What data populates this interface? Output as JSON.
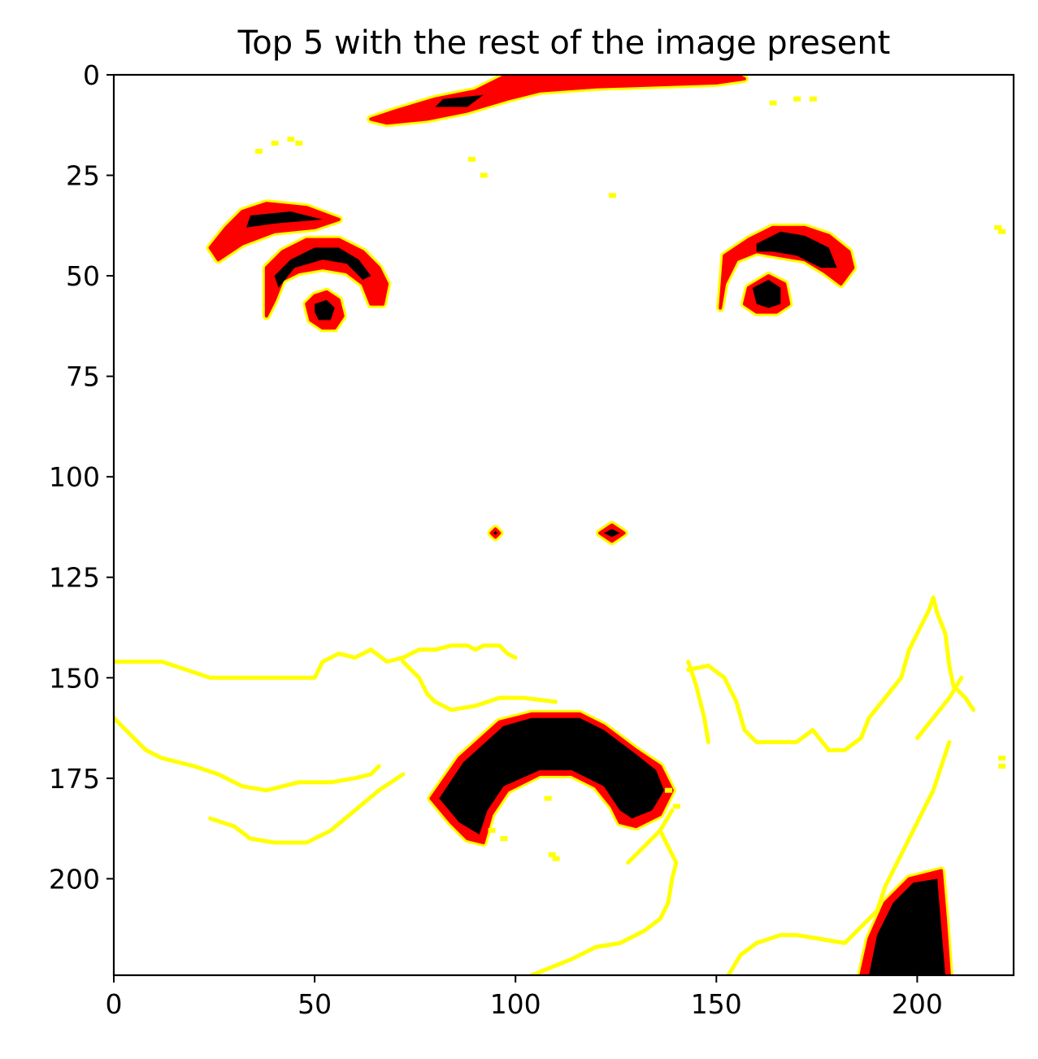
{
  "chart_data": {
    "type": "heatmap",
    "title": "Top 5 with the rest of the image present",
    "xlabel": "",
    "ylabel": "",
    "xlim": [
      0,
      224
    ],
    "ylim": [
      224,
      0
    ],
    "x_ticks": [
      0,
      50,
      100,
      150,
      200
    ],
    "y_ticks": [
      0,
      25,
      50,
      75,
      100,
      125,
      150,
      175,
      200
    ],
    "grid": false,
    "legend": "none",
    "colormap": "hot",
    "colors": {
      "background": "#ffffff",
      "high": "#000000",
      "mid": "#ff0000",
      "low": "#ffff00"
    },
    "regions": [
      {
        "name": "forehead-streak",
        "fill": [
          [
            98,
            0
          ],
          [
            155,
            0
          ],
          [
            157,
            1
          ],
          [
            150,
            2
          ],
          [
            120,
            3
          ],
          [
            106,
            4
          ],
          [
            98,
            6
          ],
          [
            88,
            9
          ],
          [
            78,
            11
          ],
          [
            68,
            12
          ],
          [
            64,
            11
          ],
          [
            70,
            9
          ],
          [
            80,
            6
          ],
          [
            90,
            4
          ]
        ],
        "core": [
          [
            82,
            6
          ],
          [
            92,
            5
          ],
          [
            88,
            8
          ],
          [
            80,
            8
          ]
        ]
      },
      {
        "name": "left-eyebrow",
        "fill": [
          [
            24,
            43
          ],
          [
            28,
            38
          ],
          [
            32,
            34
          ],
          [
            38,
            32
          ],
          [
            48,
            33
          ],
          [
            56,
            36
          ],
          [
            50,
            38
          ],
          [
            40,
            39
          ],
          [
            32,
            42
          ],
          [
            26,
            46
          ]
        ],
        "core": [
          [
            34,
            35
          ],
          [
            44,
            34
          ],
          [
            52,
            36
          ],
          [
            40,
            37
          ],
          [
            33,
            38
          ]
        ]
      },
      {
        "name": "left-eye",
        "fill": [
          [
            38,
            48
          ],
          [
            42,
            44
          ],
          [
            48,
            41
          ],
          [
            56,
            41
          ],
          [
            62,
            44
          ],
          [
            66,
            48
          ],
          [
            68,
            52
          ],
          [
            67,
            57
          ],
          [
            64,
            57
          ],
          [
            62,
            52
          ],
          [
            58,
            49
          ],
          [
            52,
            48
          ],
          [
            46,
            49
          ],
          [
            42,
            51
          ],
          [
            40,
            56
          ],
          [
            38,
            60
          ]
        ],
        "core": [
          [
            40,
            50
          ],
          [
            44,
            46
          ],
          [
            50,
            43
          ],
          [
            56,
            43
          ],
          [
            61,
            46
          ],
          [
            64,
            50
          ],
          [
            62,
            51
          ],
          [
            58,
            47
          ],
          [
            52,
            46
          ],
          [
            45,
            48
          ],
          [
            41,
            53
          ]
        ]
      },
      {
        "name": "left-eye-pupil",
        "fill": [
          [
            48,
            57
          ],
          [
            50,
            55
          ],
          [
            53,
            54
          ],
          [
            56,
            56
          ],
          [
            57,
            60
          ],
          [
            55,
            63
          ],
          [
            52,
            63
          ],
          [
            49,
            61
          ]
        ],
        "core": [
          [
            50,
            57
          ],
          [
            53,
            56
          ],
          [
            55,
            58
          ],
          [
            54,
            61
          ],
          [
            51,
            61
          ],
          [
            50,
            59
          ]
        ]
      },
      {
        "name": "right-eye",
        "fill": [
          [
            152,
            45
          ],
          [
            158,
            41
          ],
          [
            164,
            38
          ],
          [
            172,
            38
          ],
          [
            178,
            40
          ],
          [
            183,
            44
          ],
          [
            184,
            48
          ],
          [
            181,
            52
          ],
          [
            177,
            49
          ],
          [
            172,
            46
          ],
          [
            166,
            45
          ],
          [
            160,
            44
          ],
          [
            155,
            46
          ],
          [
            152,
            52
          ],
          [
            151,
            58
          ]
        ],
        "core": [
          [
            160,
            42
          ],
          [
            166,
            39
          ],
          [
            172,
            40
          ],
          [
            178,
            43
          ],
          [
            180,
            48
          ],
          [
            176,
            48
          ],
          [
            170,
            45
          ],
          [
            164,
            44
          ],
          [
            160,
            44
          ]
        ]
      },
      {
        "name": "right-eye-pupil",
        "fill": [
          [
            158,
            53
          ],
          [
            163,
            50
          ],
          [
            167,
            52
          ],
          [
            168,
            57
          ],
          [
            165,
            59
          ],
          [
            160,
            59
          ],
          [
            157,
            57
          ]
        ],
        "core": [
          [
            159,
            53
          ],
          [
            163,
            51
          ],
          [
            166,
            53
          ],
          [
            166,
            57
          ],
          [
            163,
            58
          ],
          [
            160,
            57
          ]
        ]
      },
      {
        "name": "nostril-right",
        "fill": [
          [
            121,
            114
          ],
          [
            124,
            112
          ],
          [
            127,
            114
          ],
          [
            124,
            116
          ]
        ],
        "core": [
          [
            122,
            114
          ],
          [
            124,
            113
          ],
          [
            126,
            114
          ],
          [
            124,
            115
          ]
        ]
      },
      {
        "name": "nostril-left",
        "fill": [
          [
            94,
            114
          ],
          [
            95,
            113
          ],
          [
            96,
            114
          ],
          [
            95,
            115
          ]
        ],
        "core": [
          [
            94.5,
            114
          ],
          [
            95,
            113.5
          ],
          [
            95.5,
            114
          ],
          [
            95,
            114.5
          ]
        ]
      },
      {
        "name": "mouth",
        "fill": [
          [
            79,
            180
          ],
          [
            86,
            170
          ],
          [
            96,
            161
          ],
          [
            104,
            159
          ],
          [
            116,
            159
          ],
          [
            122,
            162
          ],
          [
            130,
            168
          ],
          [
            136,
            172
          ],
          [
            139,
            178
          ],
          [
            136,
            184
          ],
          [
            130,
            187
          ],
          [
            126,
            186
          ],
          [
            124,
            182
          ],
          [
            120,
            177
          ],
          [
            114,
            174
          ],
          [
            106,
            174
          ],
          [
            98,
            178
          ],
          [
            94,
            184
          ],
          [
            92,
            191
          ],
          [
            88,
            190
          ],
          [
            84,
            186
          ]
        ],
        "core": [
          [
            81,
            180
          ],
          [
            87,
            171
          ],
          [
            97,
            162
          ],
          [
            104,
            160
          ],
          [
            116,
            160
          ],
          [
            122,
            163
          ],
          [
            130,
            169
          ],
          [
            135,
            173
          ],
          [
            137,
            178
          ],
          [
            134,
            183
          ],
          [
            129,
            185
          ],
          [
            126,
            183
          ],
          [
            122,
            177
          ],
          [
            114,
            173
          ],
          [
            106,
            173
          ],
          [
            97,
            177
          ],
          [
            93,
            183
          ],
          [
            91,
            189
          ],
          [
            86,
            186
          ]
        ]
      },
      {
        "name": "chin-shadow",
        "fill": [
          [
            186,
            224
          ],
          [
            188,
            215
          ],
          [
            192,
            206
          ],
          [
            198,
            200
          ],
          [
            206,
            198
          ],
          [
            207,
            210
          ],
          [
            208,
            224
          ]
        ],
        "core": [
          [
            188,
            224
          ],
          [
            190,
            214
          ],
          [
            194,
            206
          ],
          [
            199,
            201
          ],
          [
            205,
            200
          ],
          [
            206,
            212
          ],
          [
            207,
            224
          ]
        ]
      }
    ],
    "contours": [
      [
        [
          0,
          146
        ],
        [
          12,
          146
        ],
        [
          18,
          148
        ],
        [
          24,
          150
        ],
        [
          50,
          150
        ],
        [
          52,
          146
        ],
        [
          56,
          144
        ],
        [
          60,
          145
        ],
        [
          64,
          143
        ],
        [
          68,
          146
        ],
        [
          72,
          145
        ],
        [
          74,
          144
        ],
        [
          76,
          143
        ],
        [
          80,
          143
        ],
        [
          84,
          142
        ],
        [
          88,
          142
        ],
        [
          90,
          143
        ],
        [
          92,
          142
        ],
        [
          96,
          142
        ],
        [
          98,
          144
        ],
        [
          100,
          145
        ]
      ],
      [
        [
          0,
          160
        ],
        [
          4,
          164
        ],
        [
          8,
          168
        ],
        [
          12,
          170
        ],
        [
          20,
          172
        ],
        [
          26,
          174
        ],
        [
          30,
          176
        ],
        [
          32,
          177
        ],
        [
          38,
          178
        ],
        [
          46,
          176
        ],
        [
          54,
          176
        ],
        [
          60,
          175
        ],
        [
          64,
          174
        ],
        [
          66,
          172
        ]
      ],
      [
        [
          24,
          185
        ],
        [
          30,
          187
        ],
        [
          34,
          190
        ],
        [
          40,
          191
        ],
        [
          48,
          191
        ],
        [
          54,
          188
        ],
        [
          60,
          183
        ],
        [
          66,
          178
        ],
        [
          72,
          174
        ]
      ],
      [
        [
          72,
          146
        ],
        [
          76,
          150
        ],
        [
          78,
          154
        ],
        [
          80,
          156
        ],
        [
          84,
          158
        ],
        [
          90,
          157
        ],
        [
          96,
          155
        ],
        [
          102,
          155
        ],
        [
          110,
          156
        ]
      ],
      [
        [
          143,
          148
        ],
        [
          148,
          147
        ],
        [
          152,
          150
        ],
        [
          155,
          156
        ],
        [
          157,
          163
        ],
        [
          160,
          166
        ],
        [
          170,
          166
        ],
        [
          174,
          163
        ],
        [
          178,
          168
        ],
        [
          182,
          168
        ],
        [
          186,
          165
        ],
        [
          188,
          160
        ],
        [
          192,
          155
        ],
        [
          196,
          150
        ],
        [
          198,
          143
        ],
        [
          200,
          139
        ],
        [
          203,
          133
        ],
        [
          204,
          130
        ],
        [
          205,
          134
        ],
        [
          207,
          139
        ],
        [
          208,
          147
        ],
        [
          209,
          152
        ],
        [
          212,
          155
        ],
        [
          214,
          158
        ]
      ],
      [
        [
          143,
          146
        ],
        [
          145,
          152
        ],
        [
          147,
          160
        ],
        [
          148,
          166
        ]
      ],
      [
        [
          200,
          165
        ],
        [
          204,
          160
        ],
        [
          208,
          155
        ],
        [
          211,
          150
        ]
      ],
      [
        [
          104,
          224
        ],
        [
          114,
          220
        ],
        [
          120,
          217
        ],
        [
          126,
          216
        ],
        [
          132,
          213
        ],
        [
          136,
          210
        ],
        [
          138,
          206
        ],
        [
          139,
          200
        ],
        [
          140,
          196
        ],
        [
          138,
          192
        ],
        [
          136,
          188
        ]
      ],
      [
        [
          153,
          224
        ],
        [
          156,
          219
        ],
        [
          160,
          216
        ],
        [
          166,
          214
        ],
        [
          170,
          214
        ],
        [
          176,
          215
        ],
        [
          182,
          216
        ],
        [
          186,
          212
        ],
        [
          190,
          208
        ],
        [
          192,
          202
        ],
        [
          195,
          196
        ],
        [
          198,
          190
        ],
        [
          200,
          186
        ],
        [
          202,
          182
        ],
        [
          204,
          178
        ],
        [
          206,
          172
        ],
        [
          208,
          166
        ]
      ],
      [
        [
          128,
          196
        ],
        [
          132,
          192
        ],
        [
          136,
          188
        ],
        [
          139,
          183
        ]
      ]
    ],
    "specks": [
      [
        40,
        17
      ],
      [
        44,
        16
      ],
      [
        36,
        19
      ],
      [
        46,
        17
      ],
      [
        170,
        6
      ],
      [
        174,
        6
      ],
      [
        164,
        7
      ],
      [
        220,
        38
      ],
      [
        221,
        39
      ],
      [
        109,
        194
      ],
      [
        110,
        195
      ],
      [
        97,
        190
      ],
      [
        94,
        188
      ],
      [
        138,
        178
      ],
      [
        140,
        182
      ],
      [
        221,
        170
      ],
      [
        221,
        172
      ],
      [
        108,
        180
      ],
      [
        89,
        21
      ],
      [
        92,
        25
      ],
      [
        124,
        30
      ]
    ]
  }
}
